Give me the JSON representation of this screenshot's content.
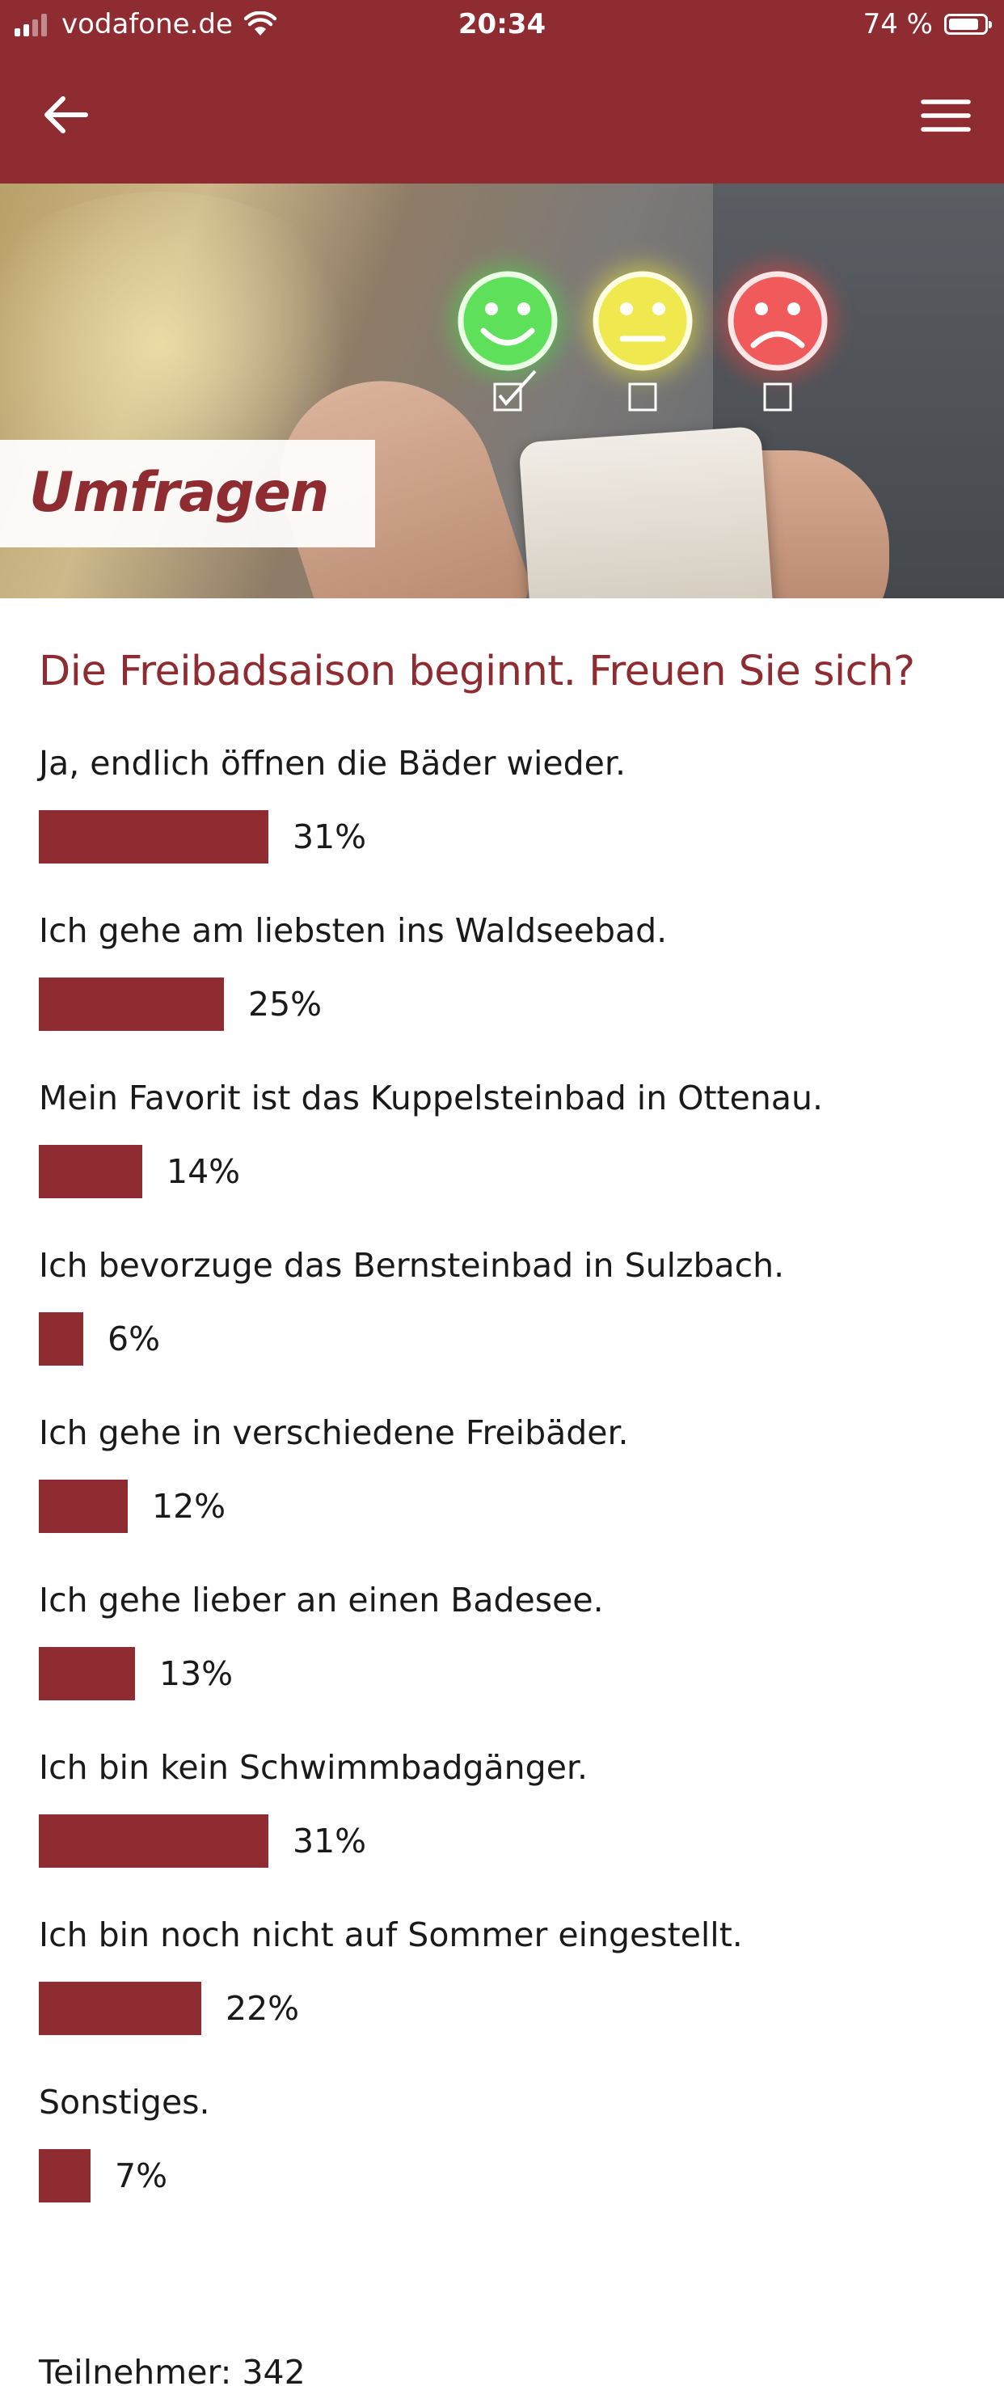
{
  "status_bar": {
    "carrier": "vodafone.de",
    "time": "20:34",
    "battery": "74 %"
  },
  "header": {
    "back_icon": "arrow-left-icon",
    "menu_icon": "hamburger-menu-icon"
  },
  "hero": {
    "label": "Umfragen",
    "icons": [
      "smiley-happy-icon",
      "smiley-neutral-icon",
      "smiley-sad-icon"
    ]
  },
  "poll": {
    "question": "Die Freibadsaison beginnt. Freuen Sie sich?",
    "options": [
      {
        "label": "Ja, endlich öffnen die Bäder wieder.",
        "percent_label": "31%",
        "percent": 31
      },
      {
        "label": "Ich gehe am liebsten ins Waldseebad.",
        "percent_label": "25%",
        "percent": 25
      },
      {
        "label": "Mein Favorit ist das Kuppelsteinbad in Ottenau.",
        "percent_label": "14%",
        "percent": 14
      },
      {
        "label": "Ich bevorzuge das Bernsteinbad in Sulzbach.",
        "percent_label": "6%",
        "percent": 6
      },
      {
        "label": "Ich gehe in verschiedene Freibäder.",
        "percent_label": "12%",
        "percent": 12
      },
      {
        "label": "Ich gehe lieber an einen Badesee.",
        "percent_label": "13%",
        "percent": 13
      },
      {
        "label": "Ich bin kein Schwimmbadgänger.",
        "percent_label": "31%",
        "percent": 31
      },
      {
        "label": "Ich bin noch nicht auf Sommer eingestellt.",
        "percent_label": "22%",
        "percent": 22
      },
      {
        "label": "Sonstiges.",
        "percent_label": "7%",
        "percent": 7
      }
    ],
    "participants_label": "Teilnehmer:",
    "participants_count": "342"
  },
  "colors": {
    "brand": "#8e2c32",
    "bar": "#8e2c32",
    "text": "#1a1a1a"
  }
}
